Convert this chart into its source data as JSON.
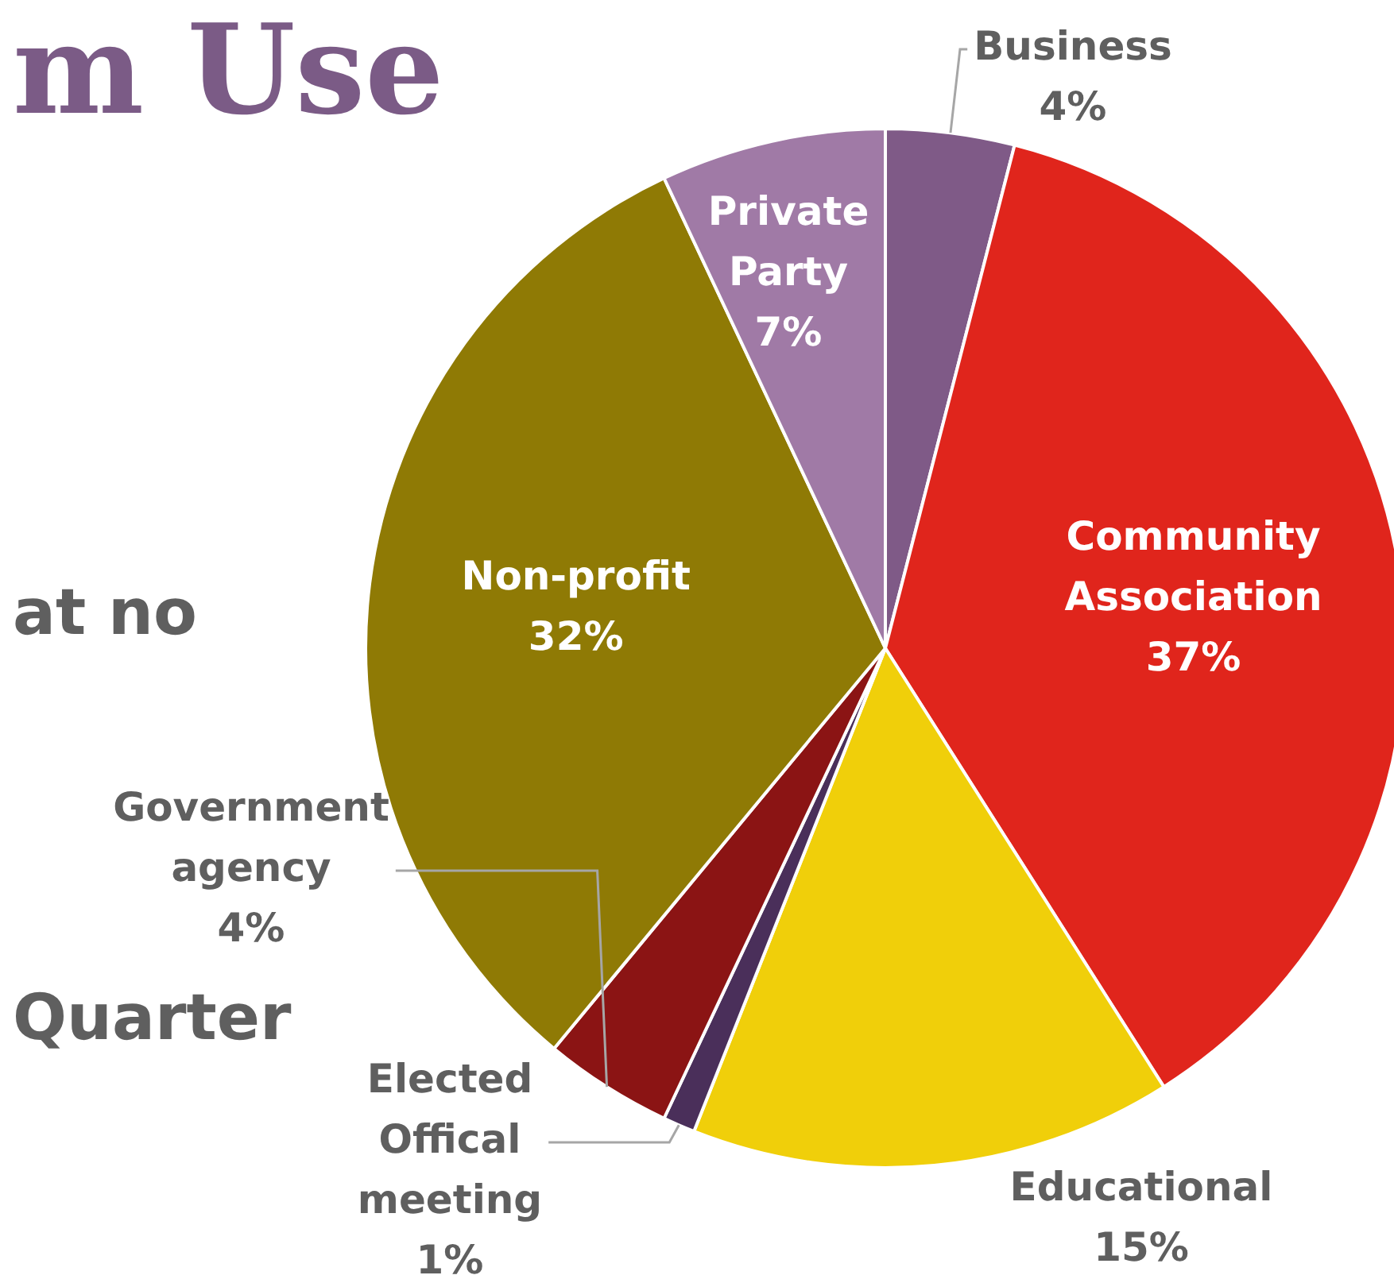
{
  "chart_data": {
    "type": "pie",
    "title": "m Use",
    "annotations": [
      "at no",
      "Quarter"
    ],
    "categories": [
      "Business",
      "Community Association",
      "Educational",
      "Elected Offical meeting",
      "Government agency",
      "Non-profit",
      "Private Party"
    ],
    "values": [
      4,
      37,
      15,
      1,
      4,
      32,
      7
    ],
    "colors": [
      "#7f5a87",
      "#e0251c",
      "#f0cf0a",
      "#4a2f5a",
      "#8b1414",
      "#8f7a05",
      "#a07aa6"
    ],
    "value_labels": [
      "4%",
      "37%",
      "15%",
      "1%",
      "4%",
      "32%",
      "7%"
    ],
    "legend": false
  }
}
